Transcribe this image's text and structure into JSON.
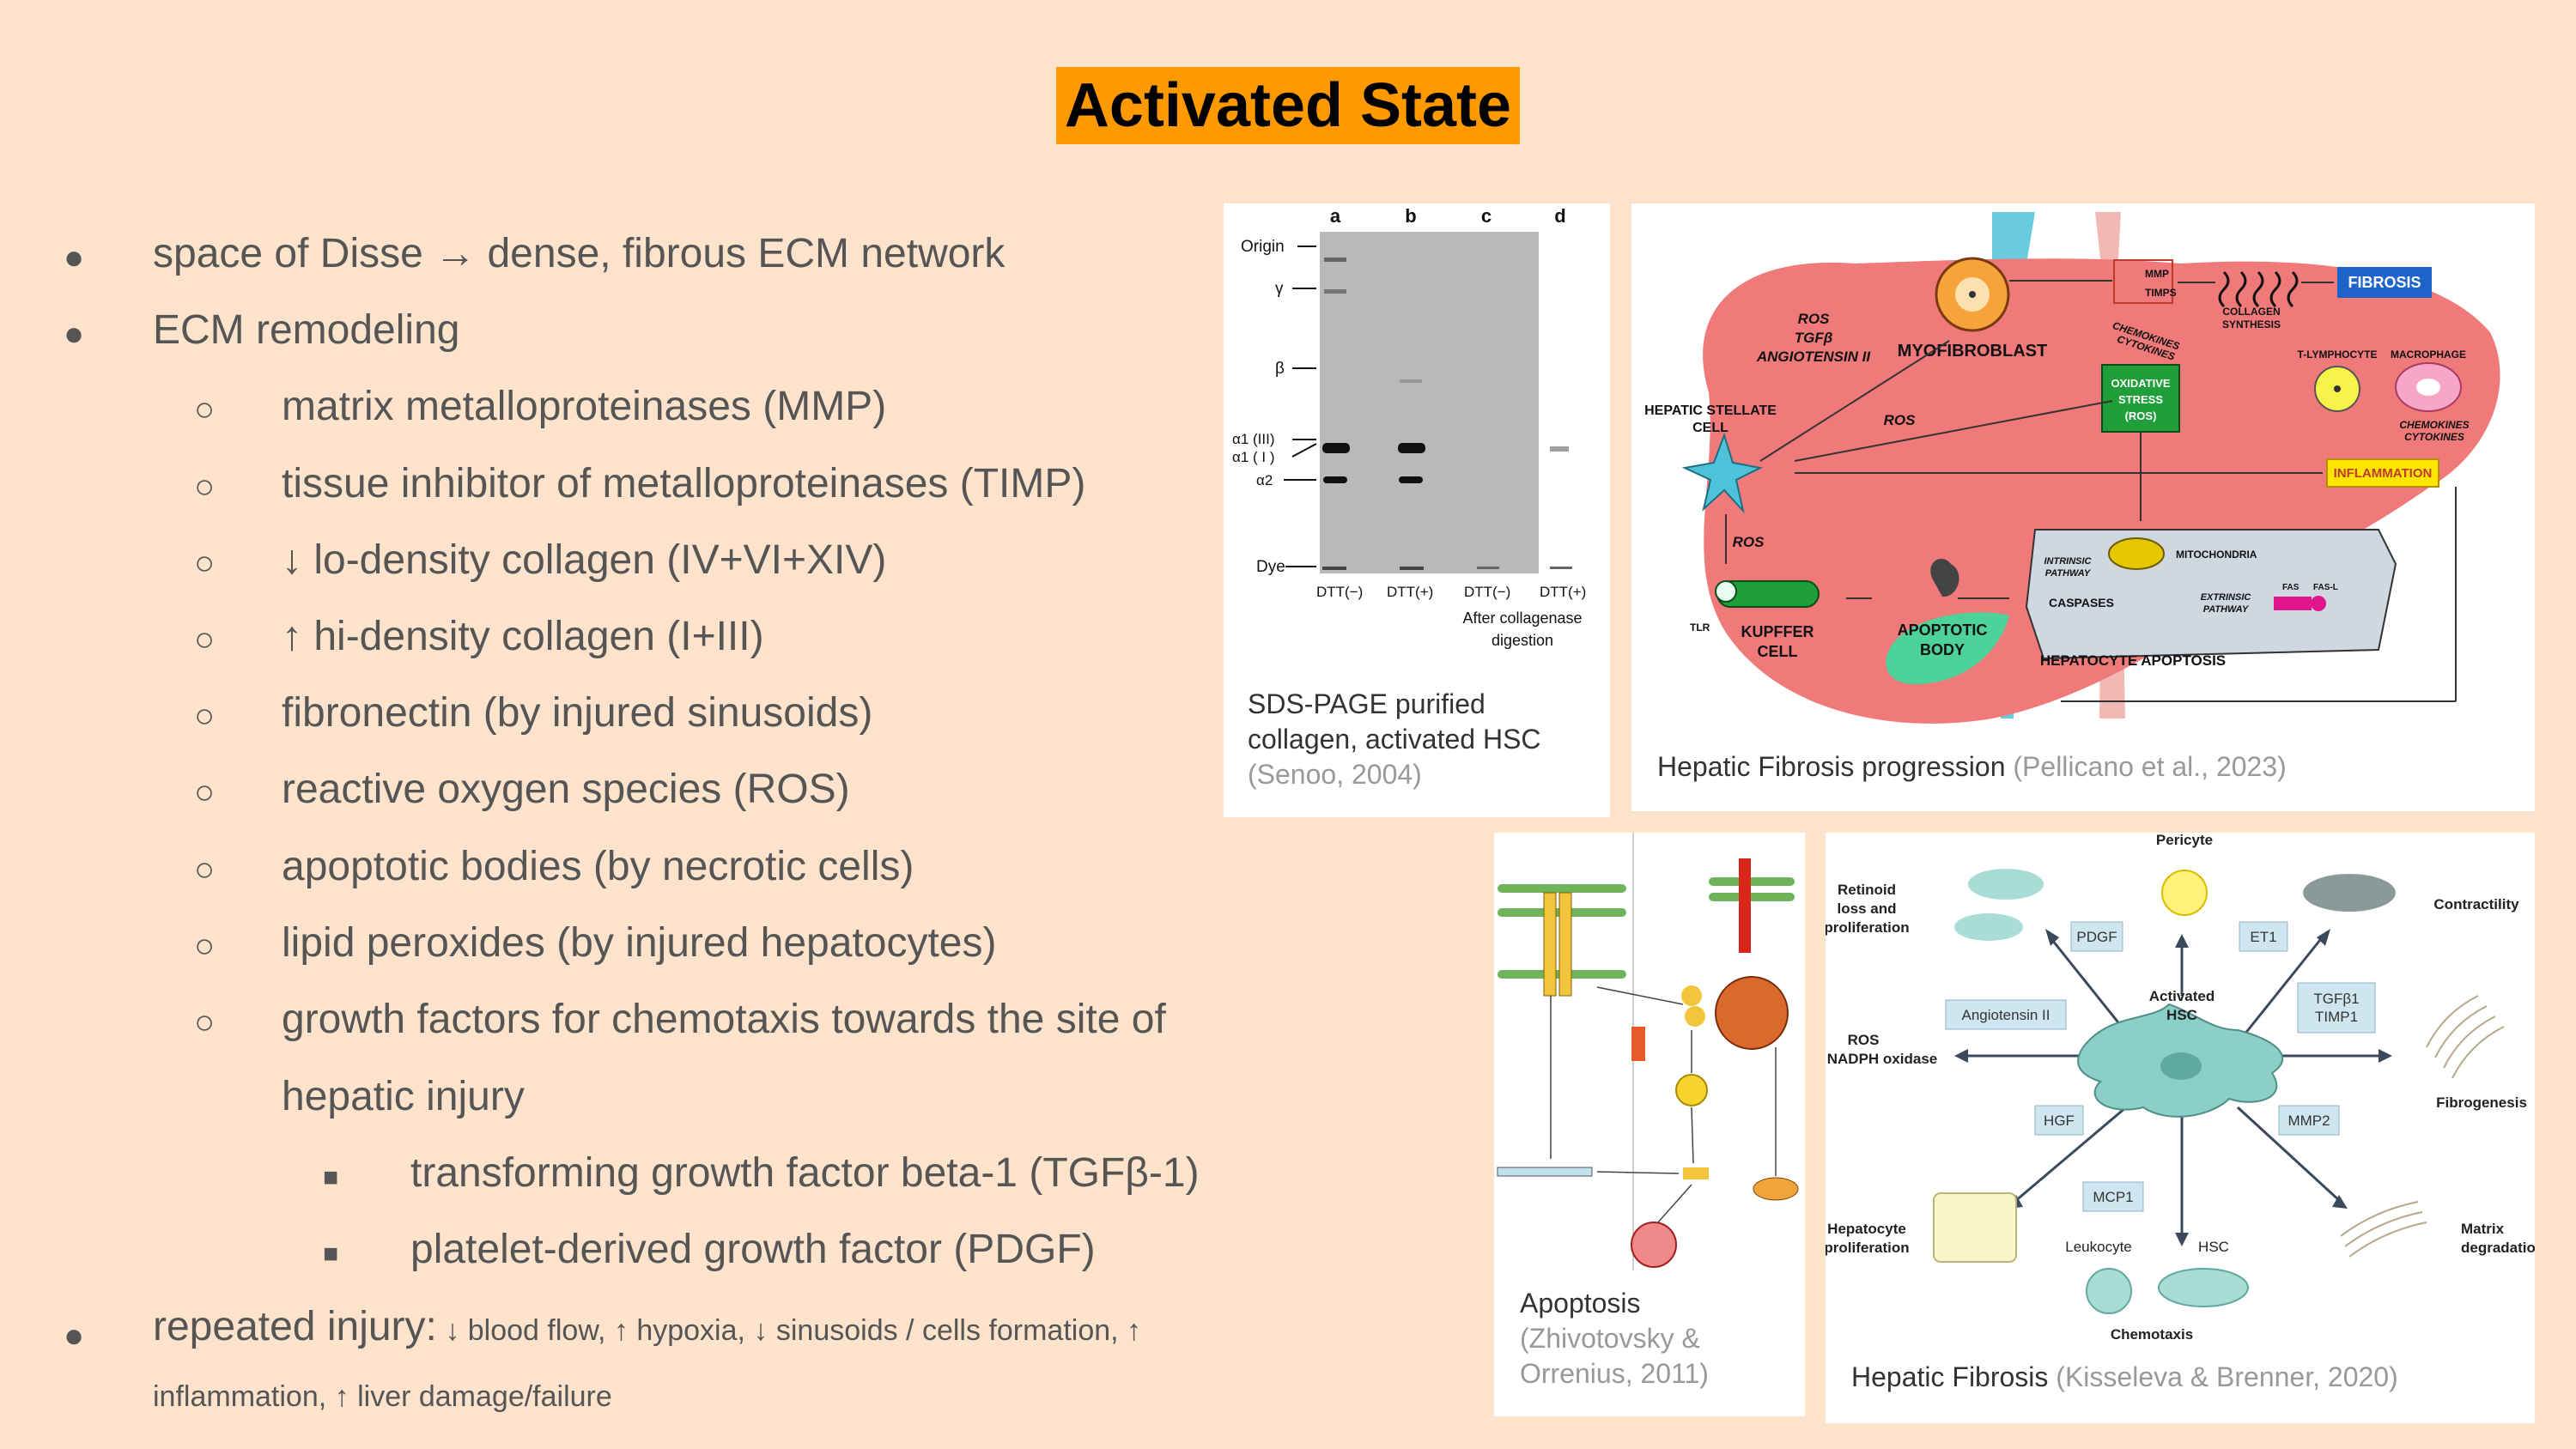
{
  "slide": {
    "title": "Activated State",
    "bullets": {
      "b1": "space of Disse → dense, fibrous ECM network",
      "b2": "ECM remodeling",
      "s1": "matrix metalloproteinases (MMP)",
      "s2": "tissue inhibitor of metalloproteinases (TIMP)",
      "s3": "↓ lo-density collagen (IV+VI+XIV)",
      "s4": "↑ hi-density collagen (I+III)",
      "s5": "fibronectin (by injured sinusoids)",
      "s6": "reactive oxygen species (ROS)",
      "s7": "apoptotic bodies (by necrotic cells)",
      "s8": "lipid peroxides (by injured hepatocytes)",
      "s9_line1": "growth factors for chemotaxis towards the site of",
      "s9_line2": "hepatic injury",
      "t1": "transforming growth factor beta-1 (TGFβ-1)",
      "t2": "platelet-derived growth factor (PDGF)",
      "b3_main": "repeated injury:",
      "b3_rest": " ↓ blood flow, ↑ hypoxia, ↓ sinusoids / cells formation, ↑",
      "b3_line2": "inflammation, ↑ liver damage/failure"
    }
  },
  "figures": {
    "gel": {
      "caption_line1": "SDS-PAGE purified",
      "caption_line2": "collagen, activated HSC",
      "citation": "(Senoo, 2004)",
      "lanes": [
        "a",
        "b",
        "c",
        "d"
      ],
      "row_labels": [
        "Origin",
        "γ",
        "β",
        "α1 (III)",
        "α1 ( I )",
        "α2",
        "Dye"
      ],
      "lane_bottom": [
        "DTT(−)",
        "DTT(+)",
        "DTT(−)",
        "DTT(+)"
      ],
      "note_line1": "After collagenase",
      "note_line2": "digestion"
    },
    "liver": {
      "caption": "Hepatic Fibrosis progression",
      "citation": "(Pellicano et al., 2023)",
      "labels": {
        "myofibroblast": "MYOFIBROBLAST",
        "ros_block_1": "ROS",
        "ros_block_2": "TGFβ",
        "ros_block_3": "ANGIOTENSIN II",
        "ros_mid": "ROS",
        "ros_low": "ROS",
        "hsc_1": "HEPATIC STELLATE",
        "hsc_2": "CELL",
        "mmp": "MMP",
        "timps": "TIMPS",
        "collagen_1": "COLLAGEN",
        "collagen_2": "SYNTHESIS",
        "fibrosis": "FIBROSIS",
        "chemo_1": "CHEMOKINES",
        "chemo_2": "CYTOKINES",
        "ox_1": "OXIDATIVE",
        "ox_2": "STRESS",
        "ox_3": "(ROS)",
        "tlymph": "T-LYMPHOCYTE",
        "macro": "MACROPHAGE",
        "chemo2_1": "CHEMOKINES",
        "chemo2_2": "CYTOKINES",
        "inflammation": "INFLAMMATION",
        "intrinsic_1": "INTRINSIC",
        "intrinsic_2": "PATHWAY",
        "mito": "MITOCHONDRIA",
        "caspases": "CASPASES",
        "extrinsic_1": "EXTRINSIC",
        "extrinsic_2": "PATHWAY",
        "fas": "FAS",
        "fasl": "FAS-L",
        "tlr": "TLR",
        "kupffer_1": "KUPFFER",
        "kupffer_2": "CELL",
        "apop_1": "APOPTOTIC",
        "apop_2": "BODY",
        "hep_apop": "HEPATOCYTE APOPTOSIS"
      }
    },
    "apoptosis": {
      "caption": "Apoptosis",
      "citation_line1": "(Zhivotovsky &",
      "citation_line2": "Orrenius, 2011)"
    },
    "hsc": {
      "caption": "Hepatic Fibrosis",
      "citation": "(Kisseleva & Brenner, 2020)",
      "labels": {
        "pericyte": "Pericyte",
        "retinoid_1": "Retinoid",
        "retinoid_2": "loss and",
        "retinoid_3": "proliferation",
        "pdgf": "PDGF",
        "et1": "ET1",
        "contractility": "Contractility",
        "activated_1": "Activated",
        "activated_2": "HSC",
        "angiotensin": "Angiotensin II",
        "tgfb1": "TGFβ1",
        "timp1": "TIMP1",
        "ros_1": "ROS",
        "ros_2": "NADPH oxidase",
        "fibrogenesis": "Fibrogenesis",
        "hgf": "HGF",
        "mmp2": "MMP2",
        "mcp1": "MCP1",
        "hep_1": "Hepatocyte",
        "hep_2": "proliferation",
        "matrix_1": "Matrix",
        "matrix_2": "degradation",
        "leukocyte": "Leukocyte",
        "hsc_small": "HSC",
        "chemotaxis": "Chemotaxis"
      }
    }
  },
  "colors": {
    "background": "#fde3cc",
    "title_bg": "#ff9900",
    "liver": "#f07a7a",
    "fibrosis_box": "#1e63c9",
    "oxidative_box": "#1f9e3a",
    "inflammation_box": "#ffe600",
    "hsc_cell": "#8ccfc9"
  }
}
